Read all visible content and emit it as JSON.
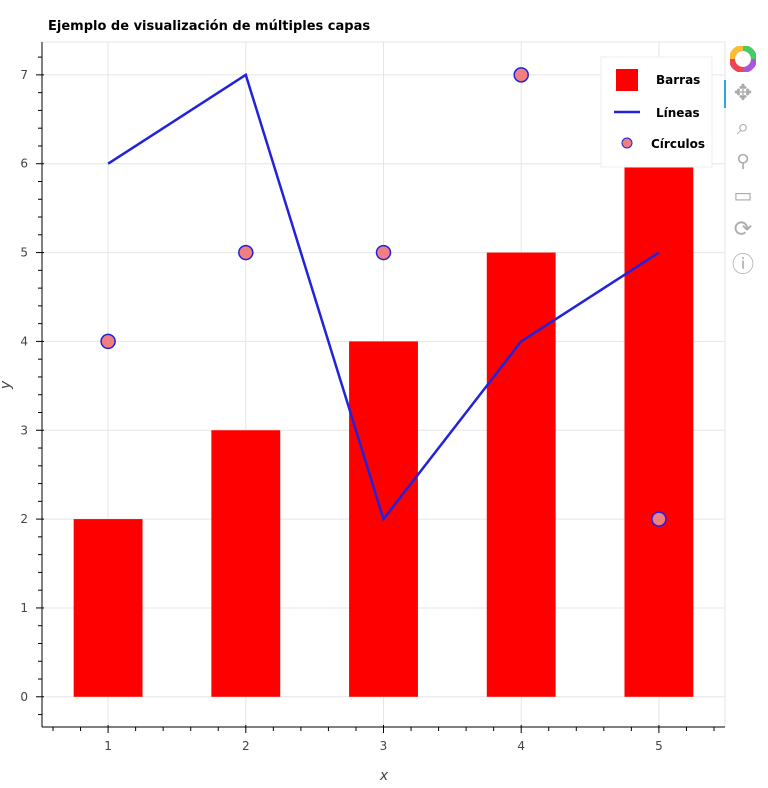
{
  "chart_data": {
    "type": "bar+line+scatter",
    "title": "Ejemplo de visualización de múltiples capas",
    "xlabel": "x",
    "ylabel": "y",
    "xlim": [
      0.52,
      5.48
    ],
    "ylim": [
      -0.34,
      7.37
    ],
    "xticks": [
      1,
      2,
      3,
      4,
      5
    ],
    "yticks": [
      0,
      1,
      2,
      3,
      4,
      5,
      6,
      7
    ],
    "grid": true,
    "legend_placement": "top-right",
    "x": [
      1,
      2,
      3,
      4,
      5
    ],
    "series": [
      {
        "name": "Barras",
        "type": "bar",
        "values": [
          2,
          3,
          4,
          5,
          6
        ],
        "color": "#ff0000",
        "width": 0.5
      },
      {
        "name": "Líneas",
        "type": "line",
        "values": [
          6,
          7,
          2,
          4,
          5
        ],
        "color": "#2222dd"
      },
      {
        "name": "Círculos",
        "type": "scatter",
        "values": [
          4,
          5,
          5,
          7,
          2
        ],
        "color": "#f08080",
        "stroke": "#2222dd"
      }
    ]
  },
  "toolbar": {
    "tools": [
      "bokeh-logo-icon",
      "pan-icon",
      "box-zoom-icon",
      "wheel-zoom-icon",
      "save-icon",
      "reset-icon",
      "help-icon"
    ]
  }
}
